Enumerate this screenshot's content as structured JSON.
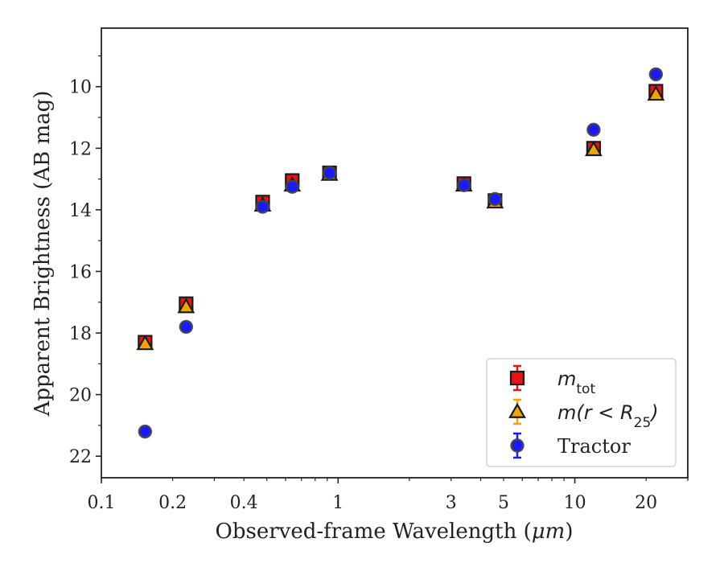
{
  "chart_data": {
    "type": "scatter",
    "xlabel_text": "Observed-frame Wavelength (",
    "xlabel_unit": "μm",
    "xlabel_close": ")",
    "ylabel": "Apparent Brightness (AB mag)",
    "x_scale": "log",
    "xlim": [
      0.1,
      30
    ],
    "ylim": [
      22.7,
      8.1
    ],
    "y_inverted": true,
    "x_ticks": [
      0.1,
      0.2,
      0.4,
      1,
      3,
      5,
      10,
      20
    ],
    "x_tick_labels": [
      "0.1",
      "0.2",
      "0.4",
      "1",
      "3",
      "5",
      "10",
      "20"
    ],
    "y_ticks": [
      10,
      12,
      14,
      16,
      18,
      20,
      22
    ],
    "y_tick_labels": [
      "10",
      "12",
      "14",
      "16",
      "18",
      "20",
      "22"
    ],
    "grid": false,
    "legend_position": "lower-right",
    "series": [
      {
        "name": "mtot",
        "legend_base": "m",
        "legend_sub": "tot",
        "marker": "square",
        "color": "#ee1111",
        "x": [
          0.153,
          0.228,
          0.48,
          0.64,
          0.92,
          3.4,
          4.6,
          12.0,
          22.0
        ],
        "y": [
          18.3,
          17.05,
          13.75,
          13.05,
          12.8,
          13.15,
          13.7,
          12.0,
          10.15
        ]
      },
      {
        "name": "m(r<R25)",
        "legend_base": "m(r < R",
        "legend_sub": "25",
        "legend_end": ")",
        "marker": "triangle",
        "color": "#f0a500",
        "x": [
          0.153,
          0.228,
          0.48,
          0.64,
          0.92,
          3.4,
          4.6,
          12.0,
          22.0
        ],
        "y": [
          18.35,
          17.15,
          13.85,
          13.2,
          12.85,
          13.2,
          13.75,
          12.05,
          10.25
        ]
      },
      {
        "name": "Tractor",
        "marker": "circle",
        "color": "#1a1aff",
        "x": [
          0.153,
          0.228,
          0.48,
          0.64,
          0.92,
          3.4,
          4.6,
          12.0,
          22.0
        ],
        "y": [
          21.2,
          17.8,
          13.9,
          13.25,
          12.8,
          13.2,
          13.65,
          11.4,
          9.6
        ]
      }
    ]
  }
}
